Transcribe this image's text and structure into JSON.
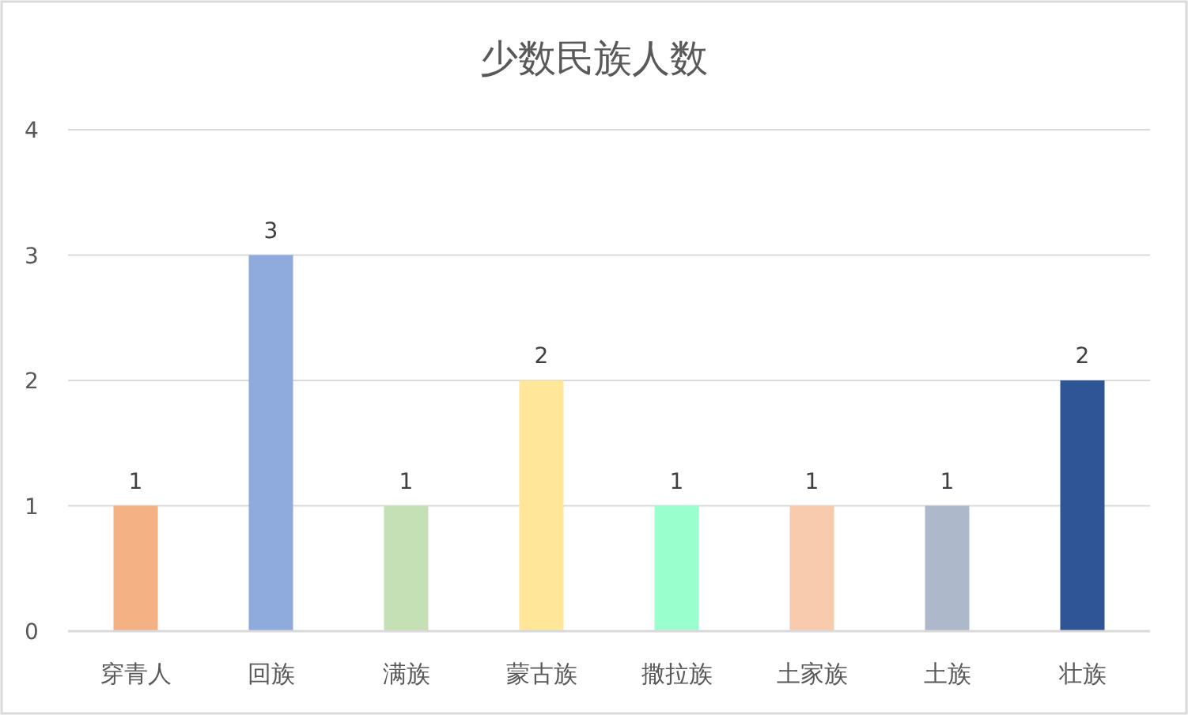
{
  "chart_data": {
    "type": "bar",
    "title": "少数民族人数",
    "categories": [
      "穿青人",
      "回族",
      "满族",
      "蒙古族",
      "撒拉族",
      "土家族",
      "土族",
      "壮族"
    ],
    "values": [
      1,
      3,
      1,
      2,
      1,
      1,
      1,
      2
    ],
    "colors": [
      "#f4b183",
      "#8faadc",
      "#c5e0b4",
      "#ffe699",
      "#99ffcc",
      "#f8cbad",
      "#adb9ca",
      "#2f5597"
    ],
    "ylim": [
      0,
      4
    ],
    "yticks": [
      0,
      1,
      2,
      3,
      4
    ],
    "grid": "y",
    "data_labels": true
  }
}
